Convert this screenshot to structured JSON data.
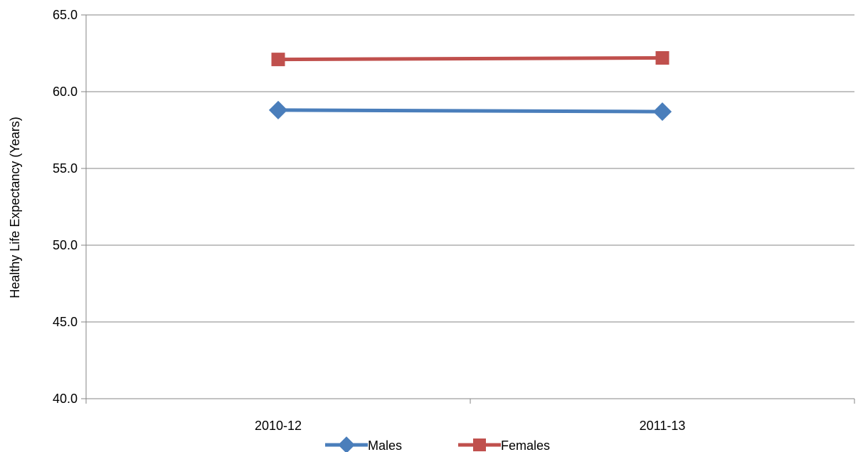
{
  "chart_data": {
    "type": "line",
    "title": "",
    "xlabel": "",
    "ylabel": "Healthy Life Expectancy (Years)",
    "categories": [
      "2010-12",
      "2011-13"
    ],
    "ylim": [
      40.0,
      65.0
    ],
    "yticks": [
      "40.0",
      "45.0",
      "50.0",
      "55.0",
      "60.0",
      "65.0"
    ],
    "grid": "horizontal",
    "legend": "bottom-center",
    "series": [
      {
        "name": "Males",
        "values": [
          58.8,
          58.7
        ],
        "color": "#4a7ebb",
        "marker": "diamond-icon"
      },
      {
        "name": "Females",
        "values": [
          62.1,
          62.2
        ],
        "color": "#c0504d",
        "marker": "square-icon"
      }
    ]
  }
}
